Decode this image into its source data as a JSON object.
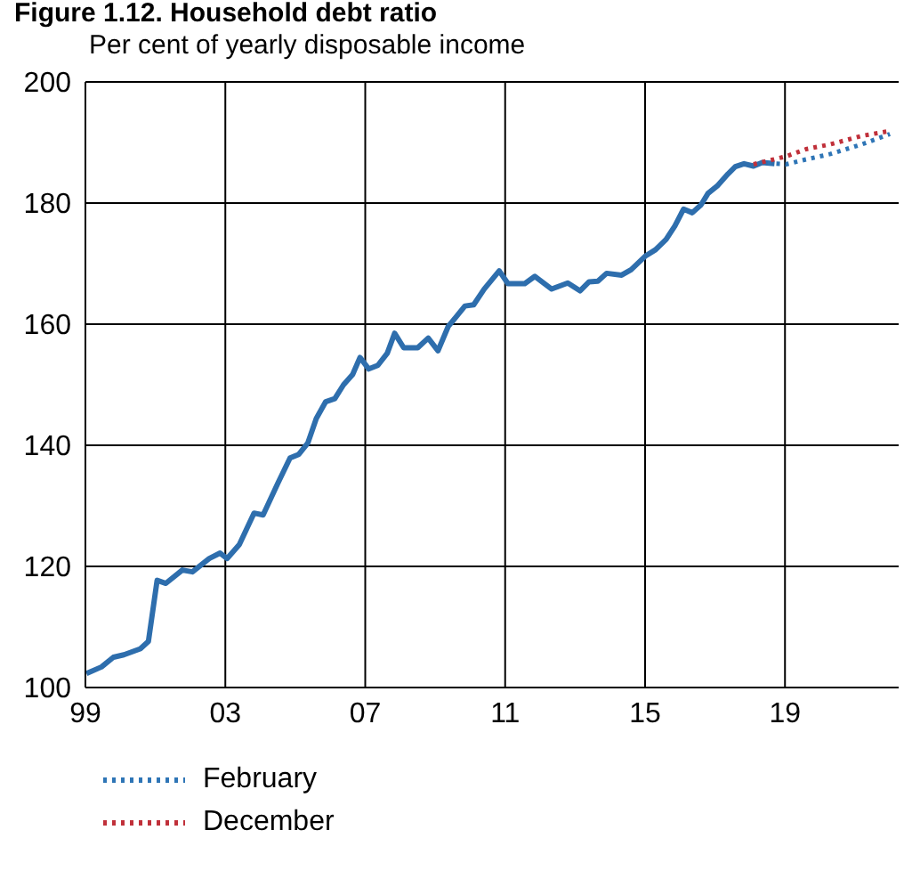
{
  "chart_data": {
    "type": "line",
    "title": "Figure 1.12. Household debt ratio",
    "subtitle": "Per cent of yearly disposable income",
    "xlim": [
      1999,
      2022.25
    ],
    "xticks": [
      {
        "value": 1999,
        "label": "99"
      },
      {
        "value": 2003,
        "label": "03"
      },
      {
        "value": 2007,
        "label": "07"
      },
      {
        "value": 2011,
        "label": "11"
      },
      {
        "value": 2015,
        "label": "15"
      },
      {
        "value": 2019,
        "label": "19"
      }
    ],
    "ylim": [
      100,
      200
    ],
    "yticks": [
      100,
      120,
      140,
      160,
      180,
      200
    ],
    "grid": true,
    "legend": "bottom left",
    "series": [
      {
        "color": "#2e6ead",
        "line_style": "solid",
        "x": [
          1999.03,
          1999.46,
          1999.8,
          2000.1,
          2000.57,
          2000.8,
          2001.05,
          2001.3,
          2001.77,
          2002.06,
          2002.54,
          2002.85,
          2003.05,
          2003.4,
          2003.82,
          2004.08,
          2004.5,
          2004.85,
          2005.1,
          2005.36,
          2005.6,
          2005.87,
          2006.13,
          2006.38,
          2006.64,
          2006.85,
          2007.1,
          2007.36,
          2007.63,
          2007.84,
          2008.1,
          2008.5,
          2008.8,
          2009.08,
          2009.37,
          2009.85,
          2010.1,
          2010.4,
          2010.83,
          2011.08,
          2011.56,
          2011.85,
          2012.33,
          2012.79,
          2013.14,
          2013.4,
          2013.65,
          2013.9,
          2014.33,
          2014.6,
          2015.0,
          2015.3,
          2015.6,
          2015.85,
          2016.1,
          2016.35,
          2016.6,
          2016.8,
          2017.06,
          2017.37,
          2017.58,
          2017.83,
          2018.1,
          2018.35,
          2018.7
        ],
        "values": [
          102.3,
          103.4,
          105,
          105.4,
          106.4,
          107.6,
          117.7,
          117.2,
          119.4,
          119.1,
          121.3,
          122.2,
          121.3,
          123.6,
          128.8,
          128.5,
          133.7,
          137.9,
          138.5,
          140.4,
          144.4,
          147.2,
          147.7,
          150,
          151.7,
          154.5,
          152.6,
          153.2,
          155.2,
          158.5,
          156.1,
          156.1,
          157.7,
          155.6,
          159.6,
          163,
          163.2,
          165.8,
          168.8,
          166.7,
          166.7,
          167.9,
          165.8,
          166.8,
          165.5,
          167,
          167.1,
          168.4,
          168.1,
          169,
          171.2,
          172.3,
          174,
          176.2,
          179,
          178.4,
          179.7,
          181.6,
          182.8,
          184.8,
          186,
          186.5,
          186.1,
          186.7,
          186.5
        ]
      },
      {
        "name": "February",
        "color": "#2e75b6",
        "line_style": "dotted",
        "x": [
          2018.5,
          2019.03,
          2019.6,
          2020.3,
          2021.2,
          2022.0
        ],
        "values": [
          186.6,
          186.4,
          187.2,
          188.1,
          189.7,
          191.4
        ]
      },
      {
        "name": "December",
        "color": "#c0303a",
        "line_style": "dotted",
        "x": [
          2018.1,
          2019.03,
          2019.6,
          2020.3,
          2021.2,
          2022.0
        ],
        "values": [
          186.4,
          187.7,
          188.9,
          189.7,
          191.1,
          191.9
        ]
      }
    ]
  }
}
